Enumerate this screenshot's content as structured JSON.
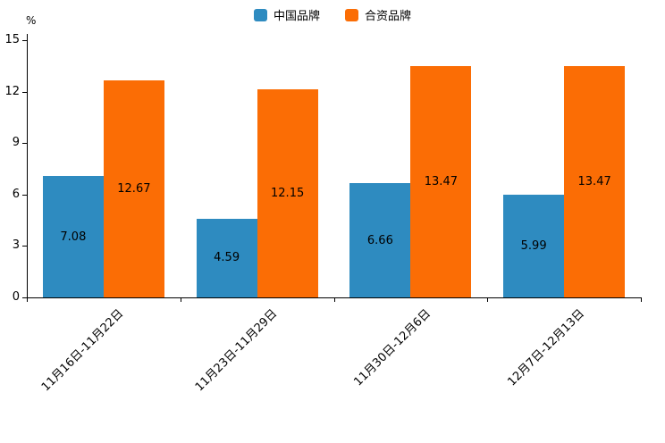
{
  "chart_data": {
    "type": "bar",
    "title": "",
    "categories": [
      "11月16日-11月22日",
      "11月23日-11月29日",
      "11月30日-12月6日",
      "12月7日-12月13日"
    ],
    "series": [
      {
        "name": "中国品牌",
        "color": "#2e8bc0",
        "values": [
          7.08,
          4.59,
          6.66,
          5.99
        ]
      },
      {
        "name": "合资品牌",
        "color": "#fb6d05",
        "values": [
          12.67,
          12.15,
          13.47,
          13.47
        ]
      }
    ],
    "xlabel": "",
    "ylabel": "%",
    "ylim": [
      0,
      15
    ],
    "yticks": [
      0,
      3,
      6,
      9,
      12,
      15
    ],
    "grid": false,
    "legend_position": "top-center",
    "data_labels": "inside-center",
    "x_tick_label_rotation_deg": 45
  }
}
